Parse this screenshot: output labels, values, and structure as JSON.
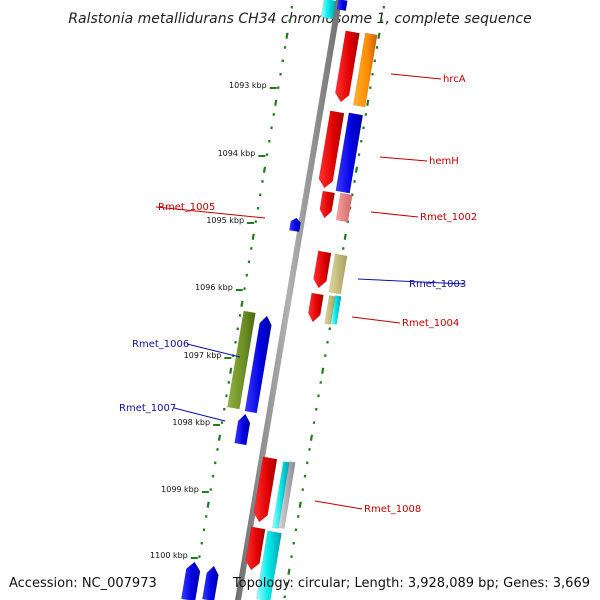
{
  "title": "Ralstonia metallidurans CH34 chromosome 1, complete sequence",
  "accession": "Accession: NC_007973",
  "summary": "Topology: circular; Length: 3,928,089 bp; Genes: 3,669",
  "colors": {
    "backbone": "#8a8a8a",
    "tick": "#1e7d1e",
    "label_forward": "#c00000",
    "label_reverse": "#1010a0"
  },
  "ticks": [
    {
      "label": "1093 kbp",
      "kbp": 1093
    },
    {
      "label": "1094 kbp",
      "kbp": 1094
    },
    {
      "label": "1095 kbp",
      "kbp": 1095
    },
    {
      "label": "1096 kbp",
      "kbp": 1096
    },
    {
      "label": "1097 kbp",
      "kbp": 1097
    },
    {
      "label": "1098 kbp",
      "kbp": 1098
    },
    {
      "label": "1099 kbp",
      "kbp": 1099
    },
    {
      "label": "1100 kbp",
      "kbp": 1100
    }
  ],
  "gene_labels": [
    {
      "text": "hrcA",
      "side": "right",
      "color": "#c00000"
    },
    {
      "text": "hemH",
      "side": "right",
      "color": "#c00000"
    },
    {
      "text": "Rmet_1002",
      "side": "right",
      "color": "#c00000"
    },
    {
      "text": "Rmet_1003",
      "side": "left",
      "color": "#1010a0"
    },
    {
      "text": "Rmet_1004",
      "side": "right",
      "color": "#c00000"
    },
    {
      "text": "Rmet_1005",
      "side": "right",
      "color": "#c00000"
    },
    {
      "text": "Rmet_1006",
      "side": "left",
      "color": "#1010a0"
    },
    {
      "text": "Rmet_1007",
      "side": "left",
      "color": "#1010a0"
    },
    {
      "text": "Rmet_1008",
      "side": "right",
      "color": "#c00000"
    }
  ]
}
